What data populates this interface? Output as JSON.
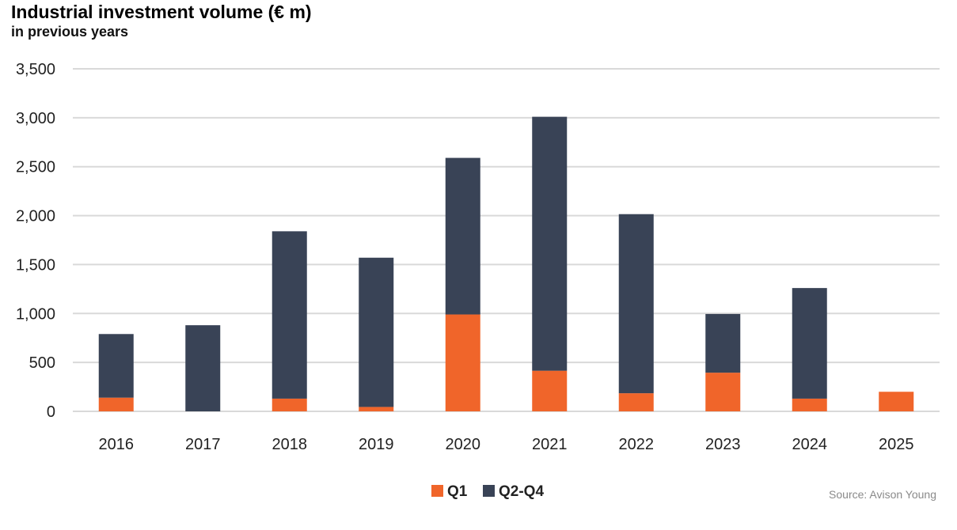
{
  "title": "Industrial investment volume (€ m)",
  "subtitle": "in previous years",
  "source": "Source: Avison Young",
  "colors": {
    "q1": "#f0652a",
    "q2q4": "#394356",
    "grid": "#d9d9d9"
  },
  "chart_data": {
    "type": "bar",
    "stacked": true,
    "title": "Industrial investment volume (€ m)",
    "subtitle": "in previous years",
    "categories": [
      "2016",
      "2017",
      "2018",
      "2019",
      "2020",
      "2021",
      "2022",
      "2023",
      "2024",
      "2025"
    ],
    "series": [
      {
        "name": "Q1",
        "values": [
          140,
          0,
          130,
          45,
          990,
          415,
          185,
          395,
          130,
          200
        ]
      },
      {
        "name": "Q2-Q4",
        "values": [
          650,
          880,
          1710,
          1525,
          1600,
          2595,
          1830,
          600,
          1130,
          0
        ]
      }
    ],
    "ylim": [
      0,
      3500
    ],
    "yticks": [
      0,
      500,
      1000,
      1500,
      2000,
      2500,
      3000,
      3500
    ],
    "ytick_labels": [
      "0",
      "500",
      "1,000",
      "1,500",
      "2,000",
      "2,500",
      "3,000",
      "3,500"
    ],
    "grid": true,
    "legend_position": "bottom-center",
    "xlabel": "",
    "ylabel": ""
  }
}
